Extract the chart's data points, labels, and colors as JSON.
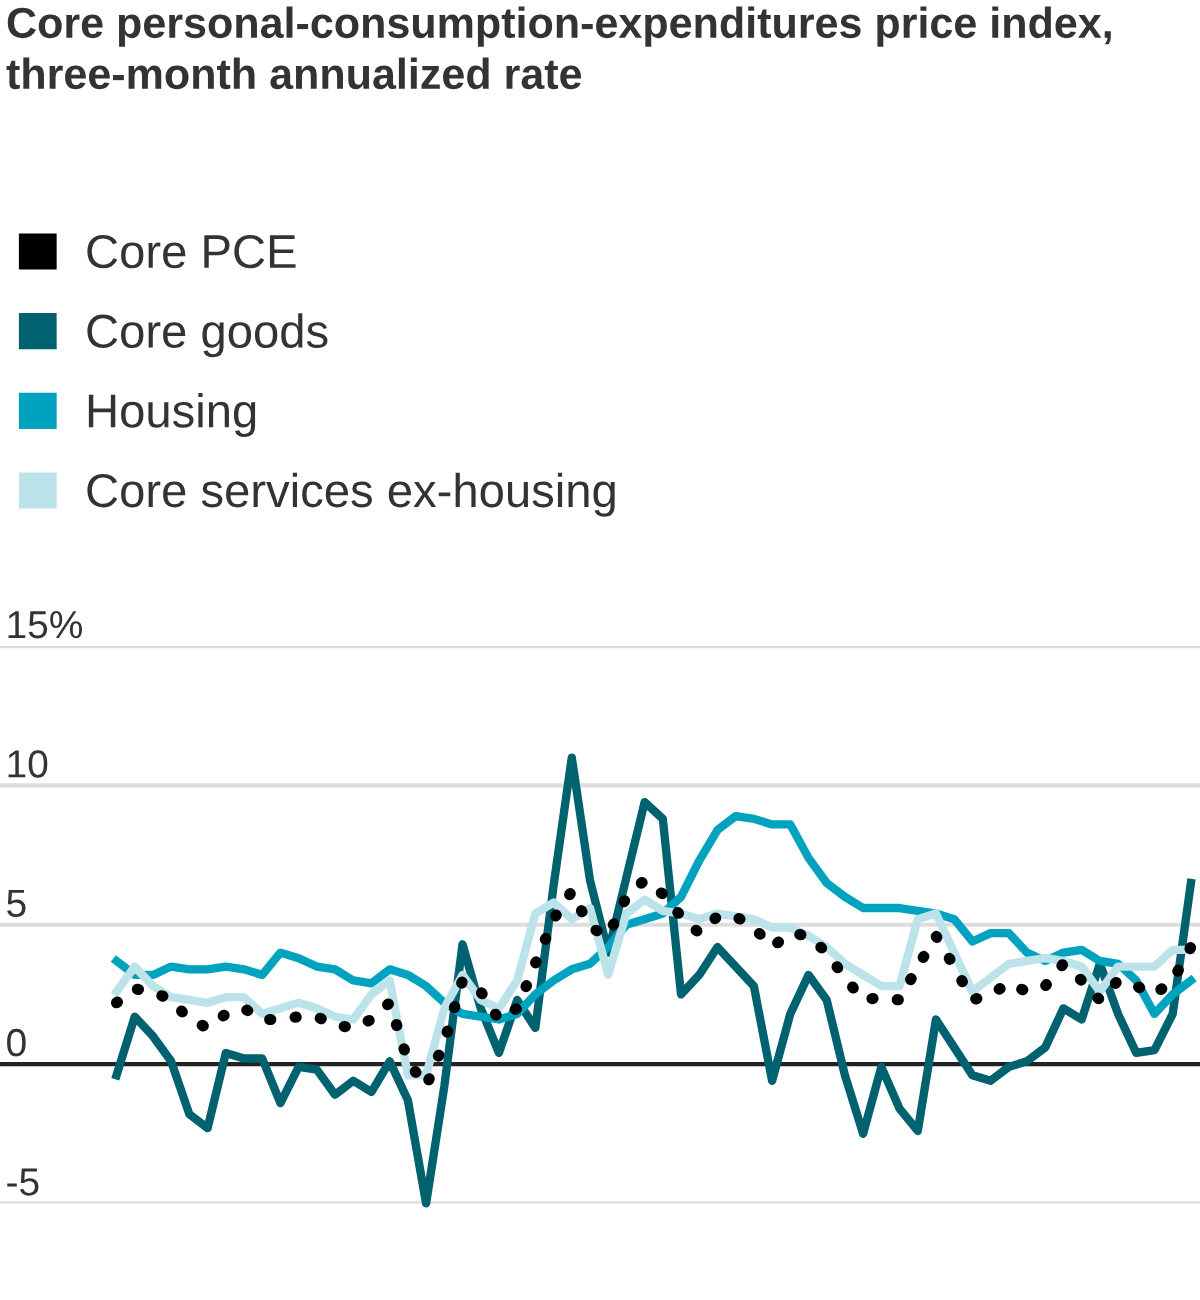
{
  "chart_data": {
    "type": "line",
    "title": "Core personal-consumption-expenditures price index, three-month annualized rate",
    "categories": [
      null,
      null,
      null,
      null,
      null,
      null,
      null,
      null,
      null,
      null,
      null,
      null,
      null,
      null,
      null,
      null,
      null,
      null,
      null,
      null,
      null,
      null,
      null,
      null,
      null,
      null,
      null,
      null,
      null,
      null,
      null,
      null,
      null,
      null,
      null,
      null,
      null,
      null,
      null,
      null,
      null,
      null,
      null,
      null,
      null,
      null,
      null,
      null,
      null,
      null,
      null,
      null,
      null,
      null,
      null,
      null,
      null,
      null,
      null,
      null
    ],
    "series": [
      {
        "name": "Core PCE",
        "color": "#000000",
        "line_style": "dotted",
        "values": [
          2.2,
          2.7,
          2.6,
          2.3,
          1.6,
          1.3,
          1.8,
          2.0,
          1.6,
          1.6,
          1.7,
          1.7,
          1.4,
          1.3,
          1.6,
          2.2,
          0.1,
          -0.8,
          0.8,
          3.0,
          2.6,
          1.6,
          2.0,
          3.6,
          5.2,
          6.2,
          4.9,
          4.6,
          6.0,
          6.6,
          6.1,
          5.3,
          4.7,
          5.3,
          5.3,
          4.9,
          4.2,
          4.7,
          4.6,
          4.0,
          3.1,
          2.3,
          2.4,
          2.3,
          3.5,
          4.6,
          3.5,
          2.3,
          2.5,
          2.9,
          2.6,
          2.8,
          3.6,
          3.0,
          2.3,
          3.0,
          2.8,
          2.5,
          3.0,
          4.2
        ]
      },
      {
        "name": "Core goods",
        "color": "#00626f",
        "line_style": "solid",
        "values": [
          -0.4,
          1.7,
          1.0,
          0.1,
          -1.8,
          -2.3,
          0.4,
          0.2,
          0.2,
          -1.4,
          -0.1,
          -0.2,
          -1.1,
          -0.6,
          -1.0,
          0.1,
          -1.3,
          -5.0,
          -0.8,
          4.3,
          2.0,
          0.4,
          2.3,
          1.3,
          6.4,
          11.0,
          6.6,
          4.0,
          6.7,
          9.4,
          8.8,
          2.5,
          3.2,
          4.2,
          3.5,
          2.8,
          -0.6,
          1.8,
          3.2,
          2.3,
          -0.4,
          -2.5,
          -0.1,
          -1.6,
          -2.4,
          1.6,
          0.6,
          -0.4,
          -0.6,
          -0.1,
          0.1,
          0.6,
          2.0,
          1.6,
          3.6,
          1.8,
          0.4,
          0.5,
          1.8,
          6.5
        ]
      },
      {
        "name": "Housing",
        "color": "#00a3bf",
        "line_style": "solid",
        "values": [
          3.7,
          3.2,
          3.2,
          3.5,
          3.4,
          3.4,
          3.5,
          3.4,
          3.2,
          4.0,
          3.8,
          3.5,
          3.4,
          3.0,
          2.9,
          3.4,
          3.2,
          2.8,
          2.2,
          1.8,
          1.7,
          1.6,
          1.8,
          2.5,
          3.0,
          3.4,
          3.6,
          4.2,
          5.0,
          5.2,
          5.4,
          6.0,
          7.3,
          8.4,
          8.9,
          8.8,
          8.6,
          8.6,
          7.4,
          6.5,
          6.0,
          5.6,
          5.6,
          5.6,
          5.5,
          5.4,
          5.2,
          4.4,
          4.7,
          4.7,
          4.0,
          3.7,
          4.0,
          4.1,
          3.7,
          3.6,
          3.0,
          1.8,
          2.5,
          3.0
        ]
      },
      {
        "name": "Core services ex-housing",
        "color": "#bde3ea",
        "line_style": "solid",
        "values": [
          2.6,
          3.5,
          2.8,
          2.4,
          2.3,
          2.2,
          2.4,
          2.4,
          1.8,
          2.0,
          2.2,
          2.0,
          1.7,
          1.6,
          2.5,
          3.0,
          -0.4,
          -0.4,
          2.0,
          3.2,
          2.3,
          2.0,
          3.0,
          5.4,
          5.8,
          5.2,
          5.6,
          3.2,
          5.4,
          5.9,
          5.5,
          5.4,
          5.2,
          5.4,
          5.3,
          5.2,
          4.9,
          4.9,
          4.6,
          4.2,
          3.6,
          3.2,
          2.8,
          2.8,
          5.2,
          5.4,
          4.0,
          2.6,
          3.1,
          3.6,
          3.7,
          3.8,
          3.7,
          3.5,
          2.6,
          3.5,
          3.5,
          3.5,
          4.1,
          4.1
        ]
      }
    ],
    "ylim": [
      -5,
      15
    ],
    "yticks": [
      {
        "value": 15,
        "label": "15%"
      },
      10,
      5,
      0,
      {
        "value": -5,
        "label": "-5"
      }
    ],
    "grid": "y",
    "legend": "top left",
    "tick_labels": "y"
  }
}
